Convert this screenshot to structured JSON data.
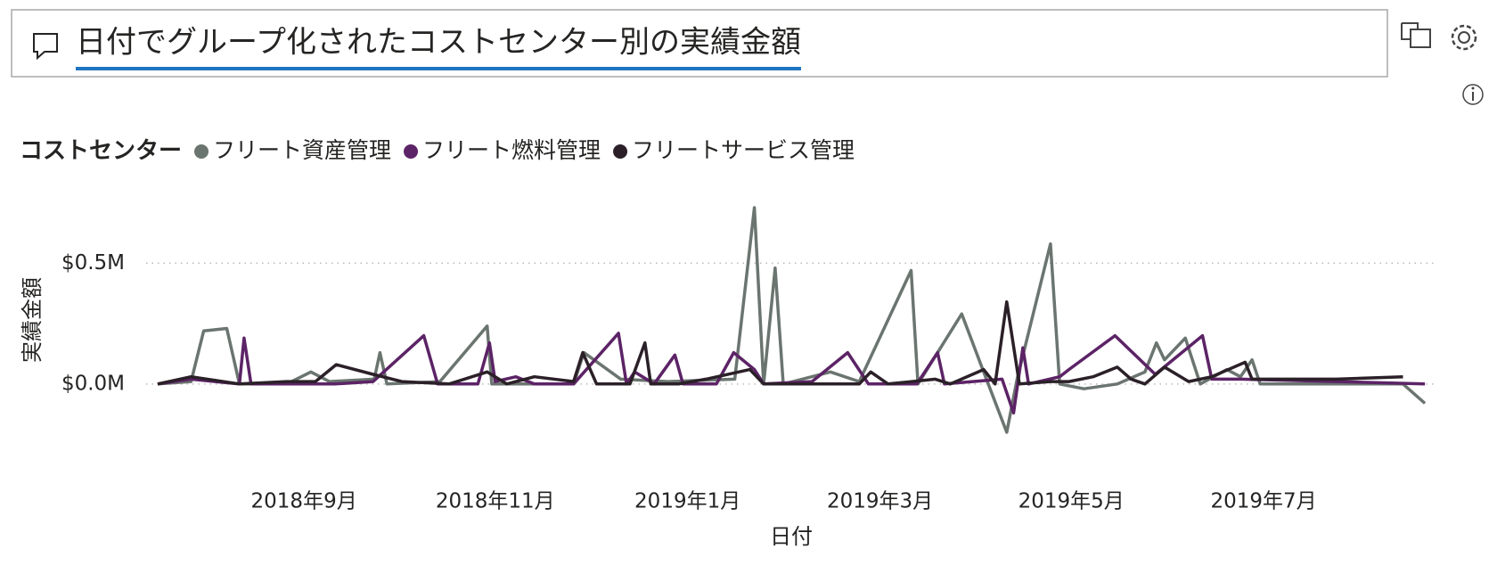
{
  "question": "日付でグループ化されたコストセンター別の実績金額",
  "chart_data": {
    "type": "line",
    "x_label": "日付",
    "y_label": "実績金額",
    "legend_title": "コストセンター",
    "xlim": [
      2018.53,
      2019.65
    ],
    "ylim": [
      -0.27,
      0.8
    ],
    "xticks": [
      {
        "value": 2018.667,
        "label": "2018年9月"
      },
      {
        "value": 2018.833,
        "label": "2018年11月"
      },
      {
        "value": 2019.0,
        "label": "2019年1月"
      },
      {
        "value": 2019.167,
        "label": "2019年3月"
      },
      {
        "value": 2019.333,
        "label": "2019年5月"
      },
      {
        "value": 2019.5,
        "label": "2019年7月"
      }
    ],
    "yticks": [
      {
        "value": 0,
        "label": "$0.0M"
      },
      {
        "value": 0.5,
        "label": "$0.5M"
      }
    ],
    "grid": true,
    "series": [
      {
        "name": "フリート資産管理",
        "color": "#6b7570",
        "x": [
          2018.54,
          2018.569,
          2018.58,
          2018.6,
          2018.611,
          2018.652,
          2018.673,
          2018.689,
          2018.728,
          2018.733,
          2018.739,
          2018.785,
          2018.826,
          2018.83,
          2018.901,
          2018.91,
          2018.942,
          2018.983,
          2019.041,
          2019.058,
          2019.066,
          2019.076,
          2019.083,
          2019.124,
          2019.149,
          2019.194,
          2019.2,
          2019.238,
          2019.257,
          2019.277,
          2019.286,
          2019.315,
          2019.323,
          2019.344,
          2019.373,
          2019.397,
          2019.407,
          2019.414,
          2019.432,
          2019.445,
          2019.468,
          2019.48,
          2019.49,
          2019.497,
          2019.563,
          2019.621,
          2019.64
        ],
        "values": [
          0.0,
          0.01,
          0.22,
          0.23,
          0.0,
          0.0,
          0.05,
          0.01,
          0.02,
          0.13,
          0.0,
          0.01,
          0.24,
          0.0,
          0.0,
          0.13,
          0.02,
          0.01,
          0.02,
          0.73,
          0.0,
          0.48,
          0.0,
          0.05,
          0.01,
          0.47,
          0.0,
          0.29,
          0.05,
          -0.2,
          0.02,
          0.58,
          0.0,
          -0.02,
          0.0,
          0.05,
          0.17,
          0.1,
          0.19,
          0.0,
          0.06,
          0.03,
          0.1,
          0.0,
          0.0,
          0.0,
          -0.08
        ]
      },
      {
        "name": "フリート燃料管理",
        "color": "#5c2366",
        "x": [
          2018.54,
          2018.569,
          2018.611,
          2018.615,
          2018.621,
          2018.694,
          2018.727,
          2018.771,
          2018.783,
          2018.818,
          2018.828,
          2018.833,
          2018.851,
          2018.867,
          2018.901,
          2018.94,
          2018.947,
          2018.954,
          2018.971,
          2018.989,
          2018.996,
          2019.025,
          2019.04,
          2019.058,
          2019.066,
          2019.108,
          2019.139,
          2019.157,
          2019.199,
          2019.217,
          2019.223,
          2019.273,
          2019.283,
          2019.291,
          2019.296,
          2019.323,
          2019.331,
          2019.371,
          2019.406,
          2019.447,
          2019.455,
          2019.48,
          2019.563,
          2019.64
        ],
        "values": [
          0.0,
          0.02,
          0.0,
          0.19,
          0.0,
          0.0,
          0.01,
          0.2,
          0.0,
          0.0,
          0.17,
          0.01,
          0.03,
          0.0,
          0.0,
          0.21,
          0.0,
          0.05,
          0.0,
          0.12,
          0.0,
          0.0,
          0.13,
          0.06,
          0.0,
          0.01,
          0.13,
          0.0,
          0.0,
          0.13,
          0.0,
          0.02,
          -0.12,
          0.15,
          0.0,
          0.03,
          0.06,
          0.2,
          0.04,
          0.2,
          0.02,
          0.02,
          0.01,
          0.0
        ]
      },
      {
        "name": "フリートサービス管理",
        "color": "#2b2028",
        "x": [
          2018.54,
          2018.569,
          2018.611,
          2018.652,
          2018.677,
          2018.695,
          2018.727,
          2018.752,
          2018.793,
          2018.826,
          2018.843,
          2018.867,
          2018.901,
          2018.909,
          2018.921,
          2018.95,
          2018.963,
          2018.968,
          2018.992,
          2019.016,
          2019.054,
          2019.066,
          2019.108,
          2019.149,
          2019.159,
          2019.174,
          2019.215,
          2019.228,
          2019.257,
          2019.267,
          2019.277,
          2019.288,
          2019.315,
          2019.331,
          2019.352,
          2019.373,
          2019.385,
          2019.397,
          2019.414,
          2019.435,
          2019.455,
          2019.484,
          2019.49,
          2019.522,
          2019.563,
          2019.621
        ],
        "values": [
          0.0,
          0.03,
          0.0,
          0.01,
          0.01,
          0.08,
          0.04,
          0.01,
          0.0,
          0.05,
          0.0,
          0.03,
          0.01,
          0.13,
          0.0,
          0.0,
          0.17,
          0.0,
          0.0,
          0.02,
          0.06,
          0.0,
          0.0,
          0.0,
          0.05,
          0.0,
          0.02,
          0.0,
          0.06,
          0.0,
          0.34,
          0.0,
          0.01,
          0.01,
          0.03,
          0.07,
          0.02,
          0.0,
          0.07,
          0.01,
          0.03,
          0.09,
          0.02,
          0.02,
          0.02,
          0.03
        ]
      }
    ]
  }
}
